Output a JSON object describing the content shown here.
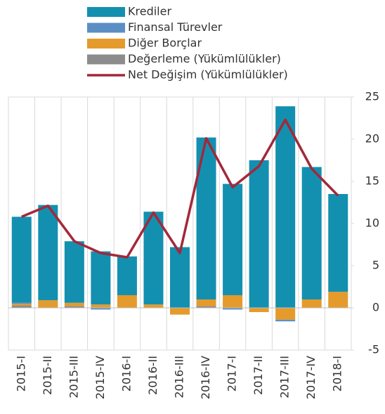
{
  "chart_data": {
    "type": "bar",
    "categories": [
      "2015-I",
      "2015-II",
      "2015-III",
      "2015-IV",
      "2016-I",
      "2016-II",
      "2016-III",
      "2016-IV",
      "2017-I",
      "2017-II",
      "2017-III",
      "2017-IV",
      "2018-I"
    ],
    "stacked": true,
    "series": [
      {
        "name": "Krediler",
        "type": "bar",
        "color": "#1390b0",
        "values": [
          10.2,
          11.3,
          7.3,
          6.3,
          4.6,
          11.0,
          7.2,
          19.2,
          13.2,
          17.5,
          23.9,
          15.7,
          11.6
        ]
      },
      {
        "name": "Finansal Türevler",
        "type": "bar",
        "color": "#5b8fc4",
        "values": [
          0.1,
          0,
          0,
          -0.2,
          0,
          0,
          0,
          0,
          -0.2,
          0,
          -0.2,
          0,
          0
        ]
      },
      {
        "name": "Diğer Borçlar",
        "type": "bar",
        "color": "#e59a2c",
        "values": [
          0.2,
          0.9,
          0.4,
          0.4,
          1.5,
          0.4,
          -0.8,
          0.8,
          1.5,
          -0.5,
          -1.4,
          1.0,
          1.9
        ]
      },
      {
        "name": "Değerleme (Yükümlülükler)",
        "type": "bar",
        "color": "#8c8c8c",
        "values": [
          0.3,
          0,
          0.2,
          0,
          0,
          0,
          0,
          0.2,
          0,
          0,
          0,
          0,
          0
        ]
      },
      {
        "name": "Net Değişim (Yükümlülükler)",
        "type": "line",
        "color": "#a3283a",
        "values": [
          10.8,
          12.1,
          7.9,
          6.5,
          6.0,
          11.3,
          6.5,
          20.1,
          14.3,
          16.8,
          22.3,
          16.5,
          13.3
        ]
      }
    ],
    "ylim": [
      -5,
      25
    ],
    "yticks": [
      -5,
      0,
      5,
      10,
      15,
      20,
      25
    ],
    "y_axis_side": "right"
  }
}
